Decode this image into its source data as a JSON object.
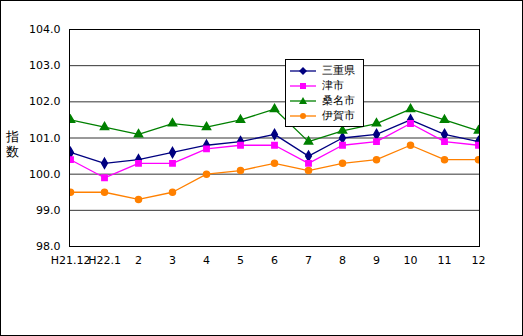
{
  "chart_data": {
    "type": "line",
    "ylabel": "指数",
    "categories": [
      "H21.12",
      "H22.1",
      "2",
      "3",
      "4",
      "5",
      "6",
      "7",
      "8",
      "9",
      "10",
      "11",
      "12"
    ],
    "series": [
      {
        "name": "三重県",
        "color": "#000080",
        "marker": "diamond",
        "values": [
          100.6,
          100.3,
          100.4,
          100.6,
          100.8,
          100.9,
          101.1,
          100.5,
          101.0,
          101.1,
          101.5,
          101.1,
          100.9
        ]
      },
      {
        "name": "津市",
        "color": "#FF00FF",
        "marker": "square",
        "values": [
          100.4,
          99.9,
          100.3,
          100.3,
          100.7,
          100.8,
          100.8,
          100.3,
          100.8,
          100.9,
          101.4,
          100.9,
          100.8
        ]
      },
      {
        "name": "桑名市",
        "color": "#008000",
        "marker": "triangle",
        "values": [
          101.5,
          101.3,
          101.1,
          101.4,
          101.3,
          101.5,
          101.8,
          100.9,
          101.2,
          101.4,
          101.8,
          101.5,
          101.2
        ]
      },
      {
        "name": "伊賀市",
        "color": "#FF8000",
        "marker": "circle",
        "values": [
          99.5,
          99.5,
          99.3,
          99.5,
          100.0,
          100.1,
          100.3,
          100.1,
          100.3,
          100.4,
          100.8,
          100.4,
          100.4
        ]
      }
    ],
    "ylim": [
      98,
      104
    ],
    "yticks": [
      {
        "value": 98,
        "label": "98.0"
      },
      {
        "value": 99,
        "label": "99.0"
      },
      {
        "value": 100,
        "label": "100.0"
      },
      {
        "value": 101,
        "label": "101.0"
      },
      {
        "value": 102,
        "label": "102.0"
      },
      {
        "value": 103,
        "label": "103.0"
      },
      {
        "value": 104,
        "label": "104.0"
      }
    ],
    "grid": true,
    "legend": "top"
  }
}
